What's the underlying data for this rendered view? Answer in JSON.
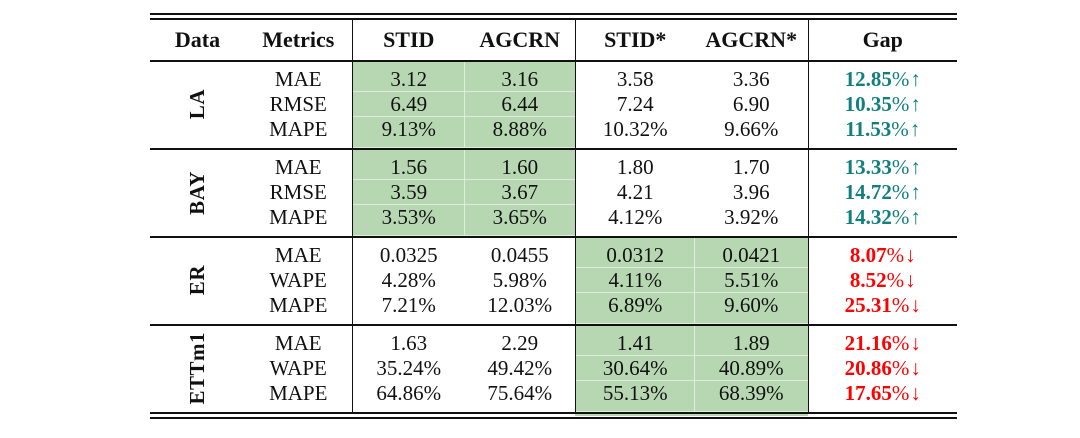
{
  "colors": {
    "highlight_green": "#b7d7b2",
    "gap_up_teal": "#117f7e",
    "gap_down_red": "#fe0000",
    "text": "#111111",
    "rule": "#111111"
  },
  "arrows": {
    "up": "↑",
    "down": "↓"
  },
  "percent_sign": "%",
  "table": {
    "headers": [
      "Data",
      "Metrics",
      "STID",
      "AGCRN",
      "STID*",
      "AGCRN*",
      "Gap"
    ],
    "groups": [
      {
        "label": "LA",
        "highlight_value_cols": [
          0,
          1
        ],
        "rows": [
          {
            "metric": "MAE",
            "values": [
              "3.12",
              "3.16",
              "3.58",
              "3.36"
            ],
            "gap": {
              "value": "12.85",
              "dir": "up"
            }
          },
          {
            "metric": "RMSE",
            "values": [
              "6.49",
              "6.44",
              "7.24",
              "6.90"
            ],
            "gap": {
              "value": "10.35",
              "dir": "up"
            }
          },
          {
            "metric": "MAPE",
            "values": [
              "9.13%",
              "8.88%",
              "10.32%",
              "9.66%"
            ],
            "gap": {
              "value": "11.53",
              "dir": "up"
            }
          }
        ]
      },
      {
        "label": "BAY",
        "highlight_value_cols": [
          0,
          1
        ],
        "rows": [
          {
            "metric": "MAE",
            "values": [
              "1.56",
              "1.60",
              "1.80",
              "1.70"
            ],
            "gap": {
              "value": "13.33",
              "dir": "up"
            }
          },
          {
            "metric": "RMSE",
            "values": [
              "3.59",
              "3.67",
              "4.21",
              "3.96"
            ],
            "gap": {
              "value": "14.72",
              "dir": "up"
            }
          },
          {
            "metric": "MAPE",
            "values": [
              "3.53%",
              "3.65%",
              "4.12%",
              "3.92%"
            ],
            "gap": {
              "value": "14.32",
              "dir": "up"
            }
          }
        ]
      },
      {
        "label": "ER",
        "highlight_value_cols": [
          2,
          3
        ],
        "rows": [
          {
            "metric": "MAE",
            "values": [
              "0.0325",
              "0.0455",
              "0.0312",
              "0.0421"
            ],
            "gap": {
              "value": "8.07",
              "dir": "down"
            }
          },
          {
            "metric": "WAPE",
            "values": [
              "4.28%",
              "5.98%",
              "4.11%",
              "5.51%"
            ],
            "gap": {
              "value": "8.52",
              "dir": "down"
            }
          },
          {
            "metric": "MAPE",
            "values": [
              "7.21%",
              "12.03%",
              "6.89%",
              "9.60%"
            ],
            "gap": {
              "value": "25.31",
              "dir": "down"
            }
          }
        ]
      },
      {
        "label": "ETTm1",
        "highlight_value_cols": [
          2,
          3
        ],
        "rows": [
          {
            "metric": "MAE",
            "values": [
              "1.63",
              "2.29",
              "1.41",
              "1.89"
            ],
            "gap": {
              "value": "21.16",
              "dir": "down"
            }
          },
          {
            "metric": "WAPE",
            "values": [
              "35.24%",
              "49.42%",
              "30.64%",
              "40.89%"
            ],
            "gap": {
              "value": "20.86",
              "dir": "down"
            }
          },
          {
            "metric": "MAPE",
            "values": [
              "64.86%",
              "75.64%",
              "55.13%",
              "68.39%"
            ],
            "gap": {
              "value": "17.65",
              "dir": "down"
            }
          }
        ]
      }
    ]
  }
}
